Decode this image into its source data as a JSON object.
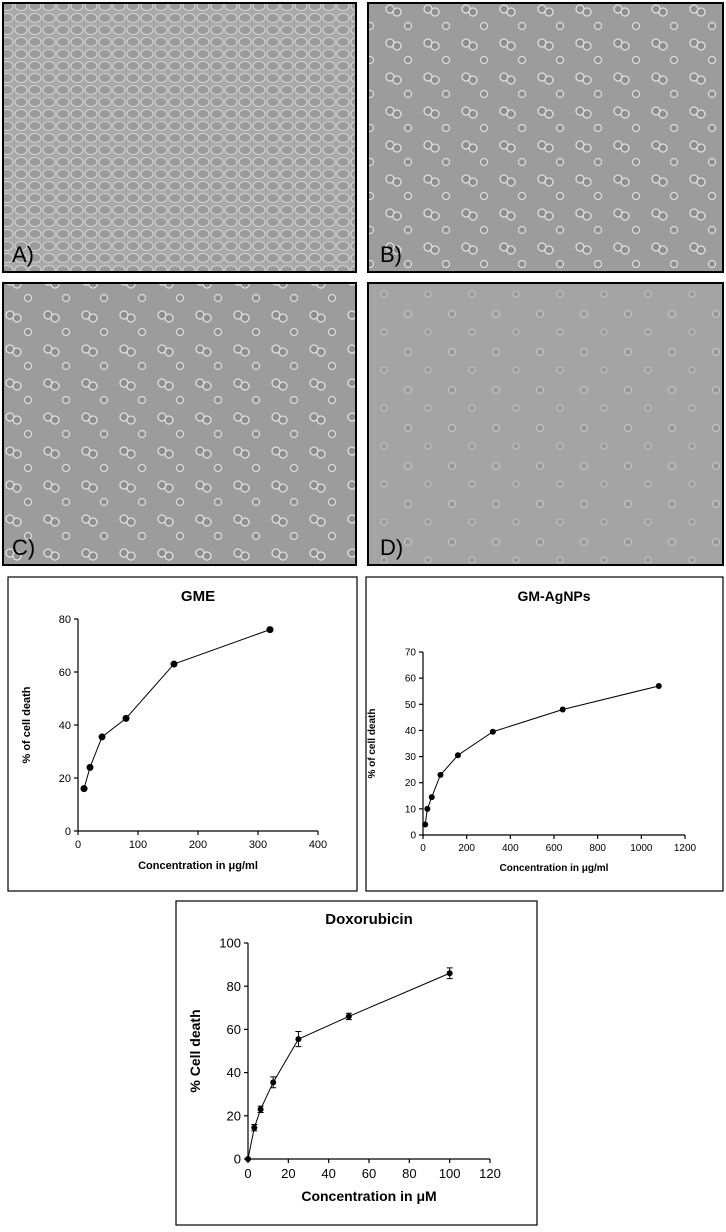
{
  "panels": [
    "A)",
    "B)",
    "C)",
    "D)"
  ],
  "chart_data": [
    {
      "type": "line",
      "title": "GME",
      "xlabel": "Concentration in μg/ml",
      "ylabel": "% of cell death",
      "x": [
        10,
        20,
        40,
        80,
        160,
        320
      ],
      "values": [
        16,
        24,
        35.5,
        42.5,
        63,
        76
      ],
      "color": "#000000",
      "xlim": [
        0,
        400
      ],
      "ylim": [
        0,
        80
      ],
      "xticks": [
        0,
        100,
        200,
        300,
        400
      ],
      "yticks": [
        0,
        20,
        40,
        60,
        80
      ]
    },
    {
      "type": "line",
      "title": "GM-AgNPs",
      "xlabel": "Concentration in μg/ml",
      "ylabel": "% of cell death",
      "x": [
        10,
        20,
        40,
        80,
        160,
        320,
        640,
        1080
      ],
      "values": [
        4,
        10,
        14.5,
        23,
        30.5,
        39.5,
        48,
        57
      ],
      "color": "#000000",
      "xlim": [
        0,
        1200
      ],
      "ylim": [
        0,
        70
      ],
      "xticks": [
        0,
        200,
        400,
        600,
        800,
        1000,
        1200
      ],
      "yticks": [
        0,
        10,
        20,
        30,
        40,
        50,
        60,
        70
      ]
    },
    {
      "type": "line",
      "title": "Doxorubicin",
      "xlabel": "Concentration in μM",
      "ylabel": "% Cell death",
      "x": [
        0,
        3.125,
        6.25,
        12.5,
        25,
        50,
        100
      ],
      "values": [
        0,
        14.5,
        23,
        35.5,
        55.5,
        66,
        86
      ],
      "errors": [
        0,
        1.5,
        1.5,
        2.5,
        3.5,
        1.5,
        2.5
      ],
      "color": "#000000",
      "xlim": [
        0,
        120
      ],
      "ylim": [
        0,
        100
      ],
      "xticks": [
        0,
        20,
        40,
        60,
        80,
        100,
        120
      ],
      "yticks": [
        0,
        20,
        40,
        60,
        80,
        100
      ]
    }
  ]
}
